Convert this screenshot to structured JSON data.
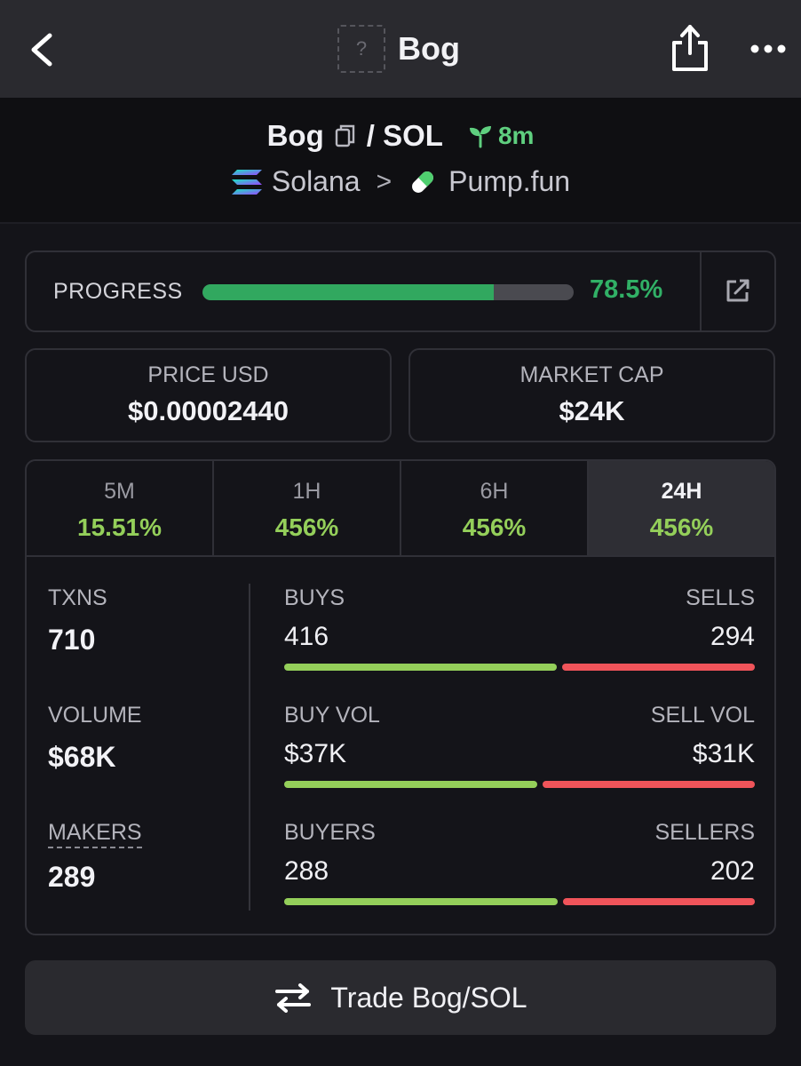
{
  "navbar": {
    "title": "Bog",
    "placeholder_glyph": "?",
    "back_icon": "chevron-left-icon",
    "share_icon": "share-icon",
    "more_icon": "more-icon"
  },
  "pair": {
    "base": "Bog",
    "quote": "/ SOL",
    "age": "8m",
    "chain": "Solana",
    "dex": "Pump.fun",
    "separator": ">"
  },
  "progress": {
    "label": "PROGRESS",
    "value_text": "78.5%",
    "percent": 78.5
  },
  "stats": {
    "price_label": "PRICE USD",
    "price_value": "$0.00002440",
    "mcap_label": "MARKET CAP",
    "mcap_value": "$24K"
  },
  "timeframes": [
    {
      "label": "5M",
      "change": "15.51%"
    },
    {
      "label": "1H",
      "change": "456%"
    },
    {
      "label": "6H",
      "change": "456%"
    },
    {
      "label": "24H",
      "change": "456%",
      "active": true
    }
  ],
  "metrics": {
    "txns_label": "TXNS",
    "txns_value": "710",
    "volume_label": "VOLUME",
    "volume_value": "$68K",
    "makers_label": "MAKERS",
    "makers_value": "289",
    "buys_label": "BUYS",
    "buys_value": "416",
    "sells_label": "SELLS",
    "sells_value": "294",
    "buys_count": 416,
    "sells_count": 294,
    "buyvol_label": "BUY VOL",
    "buyvol_value": "$37K",
    "sellvol_label": "SELL VOL",
    "sellvol_value": "$31K",
    "buyvol_num": 37,
    "sellvol_num": 31,
    "buyers_label": "BUYERS",
    "buyers_value": "288",
    "sellers_label": "SELLERS",
    "sellers_value": "202",
    "buyers_count": 288,
    "sellers_count": 202
  },
  "trade": {
    "label": "Trade Bog/SOL",
    "icon": "swap-arrows-icon"
  },
  "colors": {
    "accent_green": "#31a85f",
    "buy_green": "#94cf5a",
    "sell_red": "#f0545a"
  }
}
